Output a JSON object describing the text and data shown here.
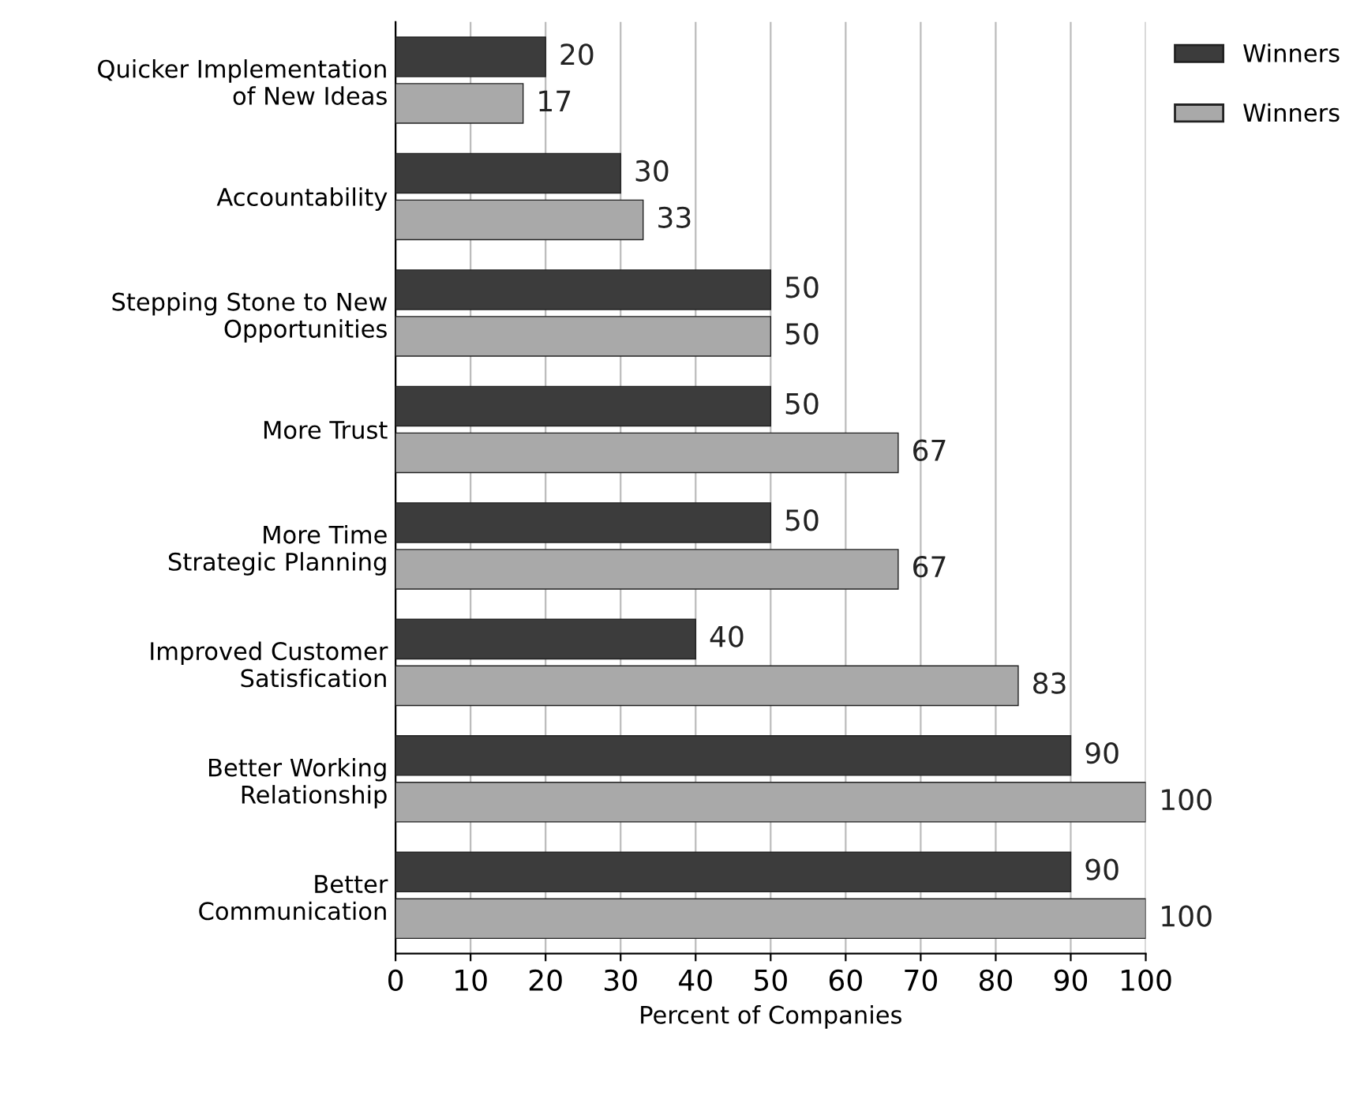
{
  "chart_data": {
    "type": "bar",
    "orientation": "horizontal",
    "xlabel": "Percent of Companies",
    "categories": [
      "Quicker Implementation\nof New Ideas",
      "Accountability",
      "Stepping Stone to New\nOpportunities",
      "More Trust",
      "More Time\nStrategic Planning",
      "Improved Customer\nSatisfication",
      "Better Working\nRelationship",
      "Better\nCommunication"
    ],
    "series": [
      {
        "name": "Winners",
        "color": "#3c3c3c",
        "values": [
          20,
          30,
          50,
          50,
          50,
          40,
          90,
          90
        ]
      },
      {
        "name": "Winners",
        "color": "#a9a9a9",
        "values": [
          17,
          33,
          50,
          67,
          67,
          83,
          100,
          100
        ]
      }
    ],
    "xlim": [
      0,
      100
    ],
    "xticks": [
      0,
      10,
      20,
      30,
      40,
      50,
      60,
      70,
      80,
      90,
      100
    ],
    "grid": "x",
    "legend": "top right",
    "data_labels": true
  }
}
